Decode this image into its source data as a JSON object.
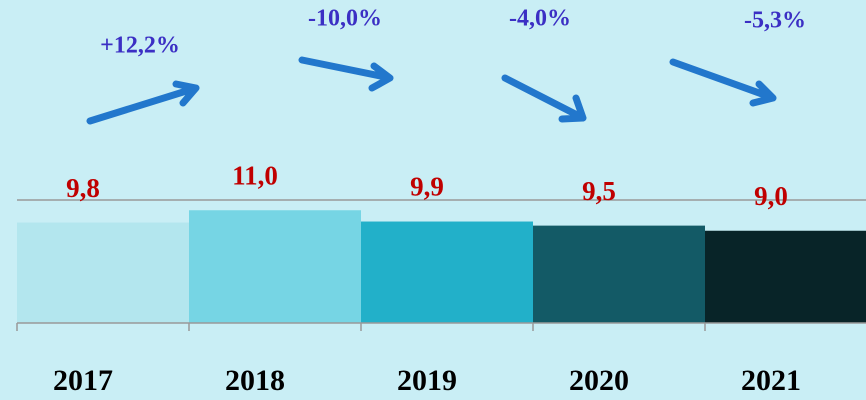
{
  "chart_data": {
    "type": "bar",
    "categories": [
      "2017",
      "2018",
      "2019",
      "2020",
      "2021"
    ],
    "values": [
      9.8,
      11.0,
      9.9,
      9.5,
      9.0
    ],
    "value_labels": [
      "9,8",
      "11,0",
      "9,9",
      "9,5",
      "9,0"
    ],
    "colors": [
      "#b3e6ee",
      "#76d5e4",
      "#22b0c9",
      "#135a66",
      "#082428"
    ],
    "annotations": [
      "+12,2%",
      "-10,0%",
      "-4,0%",
      "-5,3%"
    ],
    "ylim": [
      0,
      12
    ]
  }
}
